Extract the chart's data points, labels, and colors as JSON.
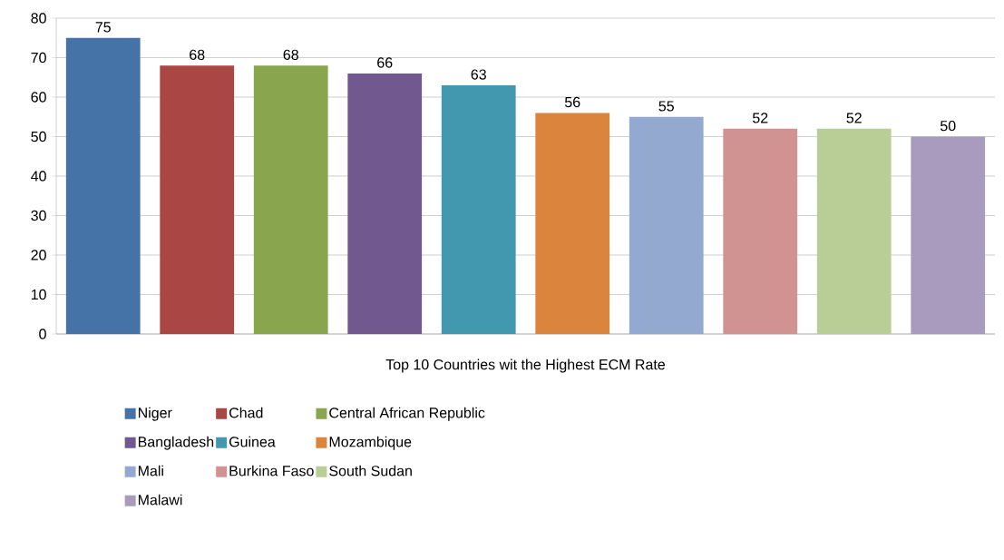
{
  "chart_data": {
    "type": "bar",
    "xlabel": "Top 10 Countries wit the Highest ECM Rate",
    "categories": [
      null
    ],
    "series": [
      {
        "name": "Niger",
        "color": "#4572a7",
        "values": [
          75
        ]
      },
      {
        "name": "Chad",
        "color": "#aa4643",
        "values": [
          68
        ]
      },
      {
        "name": "Central African Republic",
        "color": "#89a54e",
        "values": [
          68
        ]
      },
      {
        "name": "Bangladesh",
        "color": "#71588f",
        "values": [
          66
        ]
      },
      {
        "name": "Guinea",
        "color": "#4198af",
        "values": [
          63
        ]
      },
      {
        "name": "Mozambique",
        "color": "#db843d",
        "values": [
          56
        ]
      },
      {
        "name": "Mali",
        "color": "#93a9cf",
        "values": [
          55
        ]
      },
      {
        "name": "Burkina Faso",
        "color": "#d19392",
        "values": [
          52
        ]
      },
      {
        "name": "South Sudan",
        "color": "#b9cd96",
        "values": [
          52
        ]
      },
      {
        "name": "Malawi",
        "color": "#a99bbd",
        "values": [
          50
        ]
      }
    ],
    "ylim": [
      0,
      80
    ],
    "yticks": [
      0,
      10,
      20,
      30,
      40,
      50,
      60,
      70,
      80
    ],
    "grid": "y",
    "legend": "bottom",
    "data_labels": true,
    "tick_labels": "y"
  }
}
